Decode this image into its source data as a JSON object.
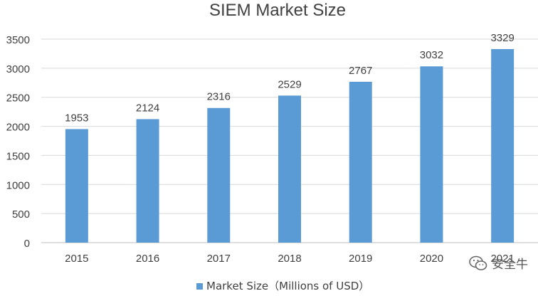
{
  "chart_data": {
    "type": "bar",
    "title": "SIEM Market Size",
    "categories": [
      "2015",
      "2016",
      "2017",
      "2018",
      "2019",
      "2020",
      "2021"
    ],
    "series": [
      {
        "name": "Market Size（Millions of USD）",
        "values": [
          1953,
          2124,
          2316,
          2529,
          2767,
          3032,
          3329
        ],
        "color": "#5B9BD5"
      }
    ],
    "ylim": [
      0,
      3500
    ],
    "yticks": [
      "0",
      "500",
      "1000",
      "1500",
      "2000",
      "2500",
      "3000",
      "3500"
    ],
    "grid": true,
    "legend": "bottom",
    "data_labels": true
  },
  "watermark": {
    "text": "安全牛",
    "icon": "wechat-icon"
  }
}
